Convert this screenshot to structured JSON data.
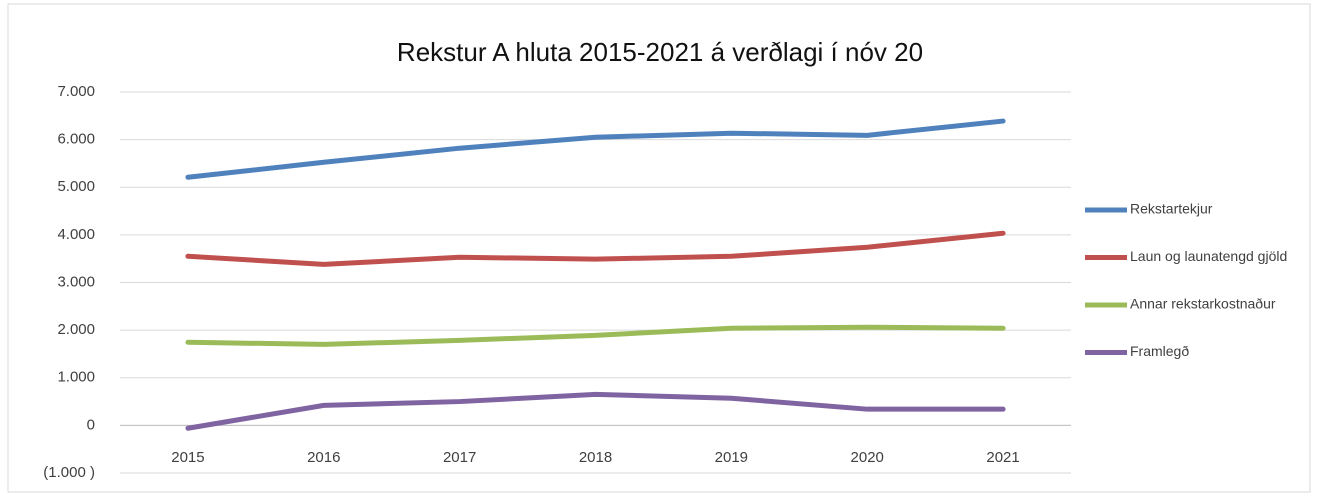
{
  "chart_data": {
    "type": "line",
    "title": "Rekstur A hluta 2015-2021 á verðlagi í nóv 20",
    "categories": [
      "2015",
      "2016",
      "2017",
      "2018",
      "2019",
      "2020",
      "2021"
    ],
    "series": [
      {
        "name": "Rekstartekjur",
        "color": "#4f81bd",
        "values": [
          5210,
          5525,
          5820,
          6050,
          6135,
          6090,
          6390
        ]
      },
      {
        "name": "Laun og launatengd gjöld",
        "color": "#c0504d",
        "values": [
          3550,
          3380,
          3530,
          3490,
          3550,
          3740,
          4035
        ]
      },
      {
        "name": "Annar rekstarkostnaður",
        "color": "#9bbb59",
        "values": [
          1745,
          1700,
          1785,
          1890,
          2040,
          2060,
          2040
        ]
      },
      {
        "name": "Framlegð",
        "color": "#8064a2",
        "values": [
          -60,
          420,
          500,
          650,
          570,
          340,
          340
        ]
      }
    ],
    "ylim": [
      -1000,
      7000
    ],
    "yticks": [
      {
        "value": 7000,
        "label": "7.000"
      },
      {
        "value": 6000,
        "label": "6.000"
      },
      {
        "value": 5000,
        "label": "5.000"
      },
      {
        "value": 4000,
        "label": "4.000"
      },
      {
        "value": 3000,
        "label": "3.000"
      },
      {
        "value": 2000,
        "label": "2.000"
      },
      {
        "value": 1000,
        "label": "1.000"
      },
      0,
      {
        "value": -1000,
        "label": "(1.000 )"
      }
    ],
    "grid": true,
    "legend": "right"
  }
}
